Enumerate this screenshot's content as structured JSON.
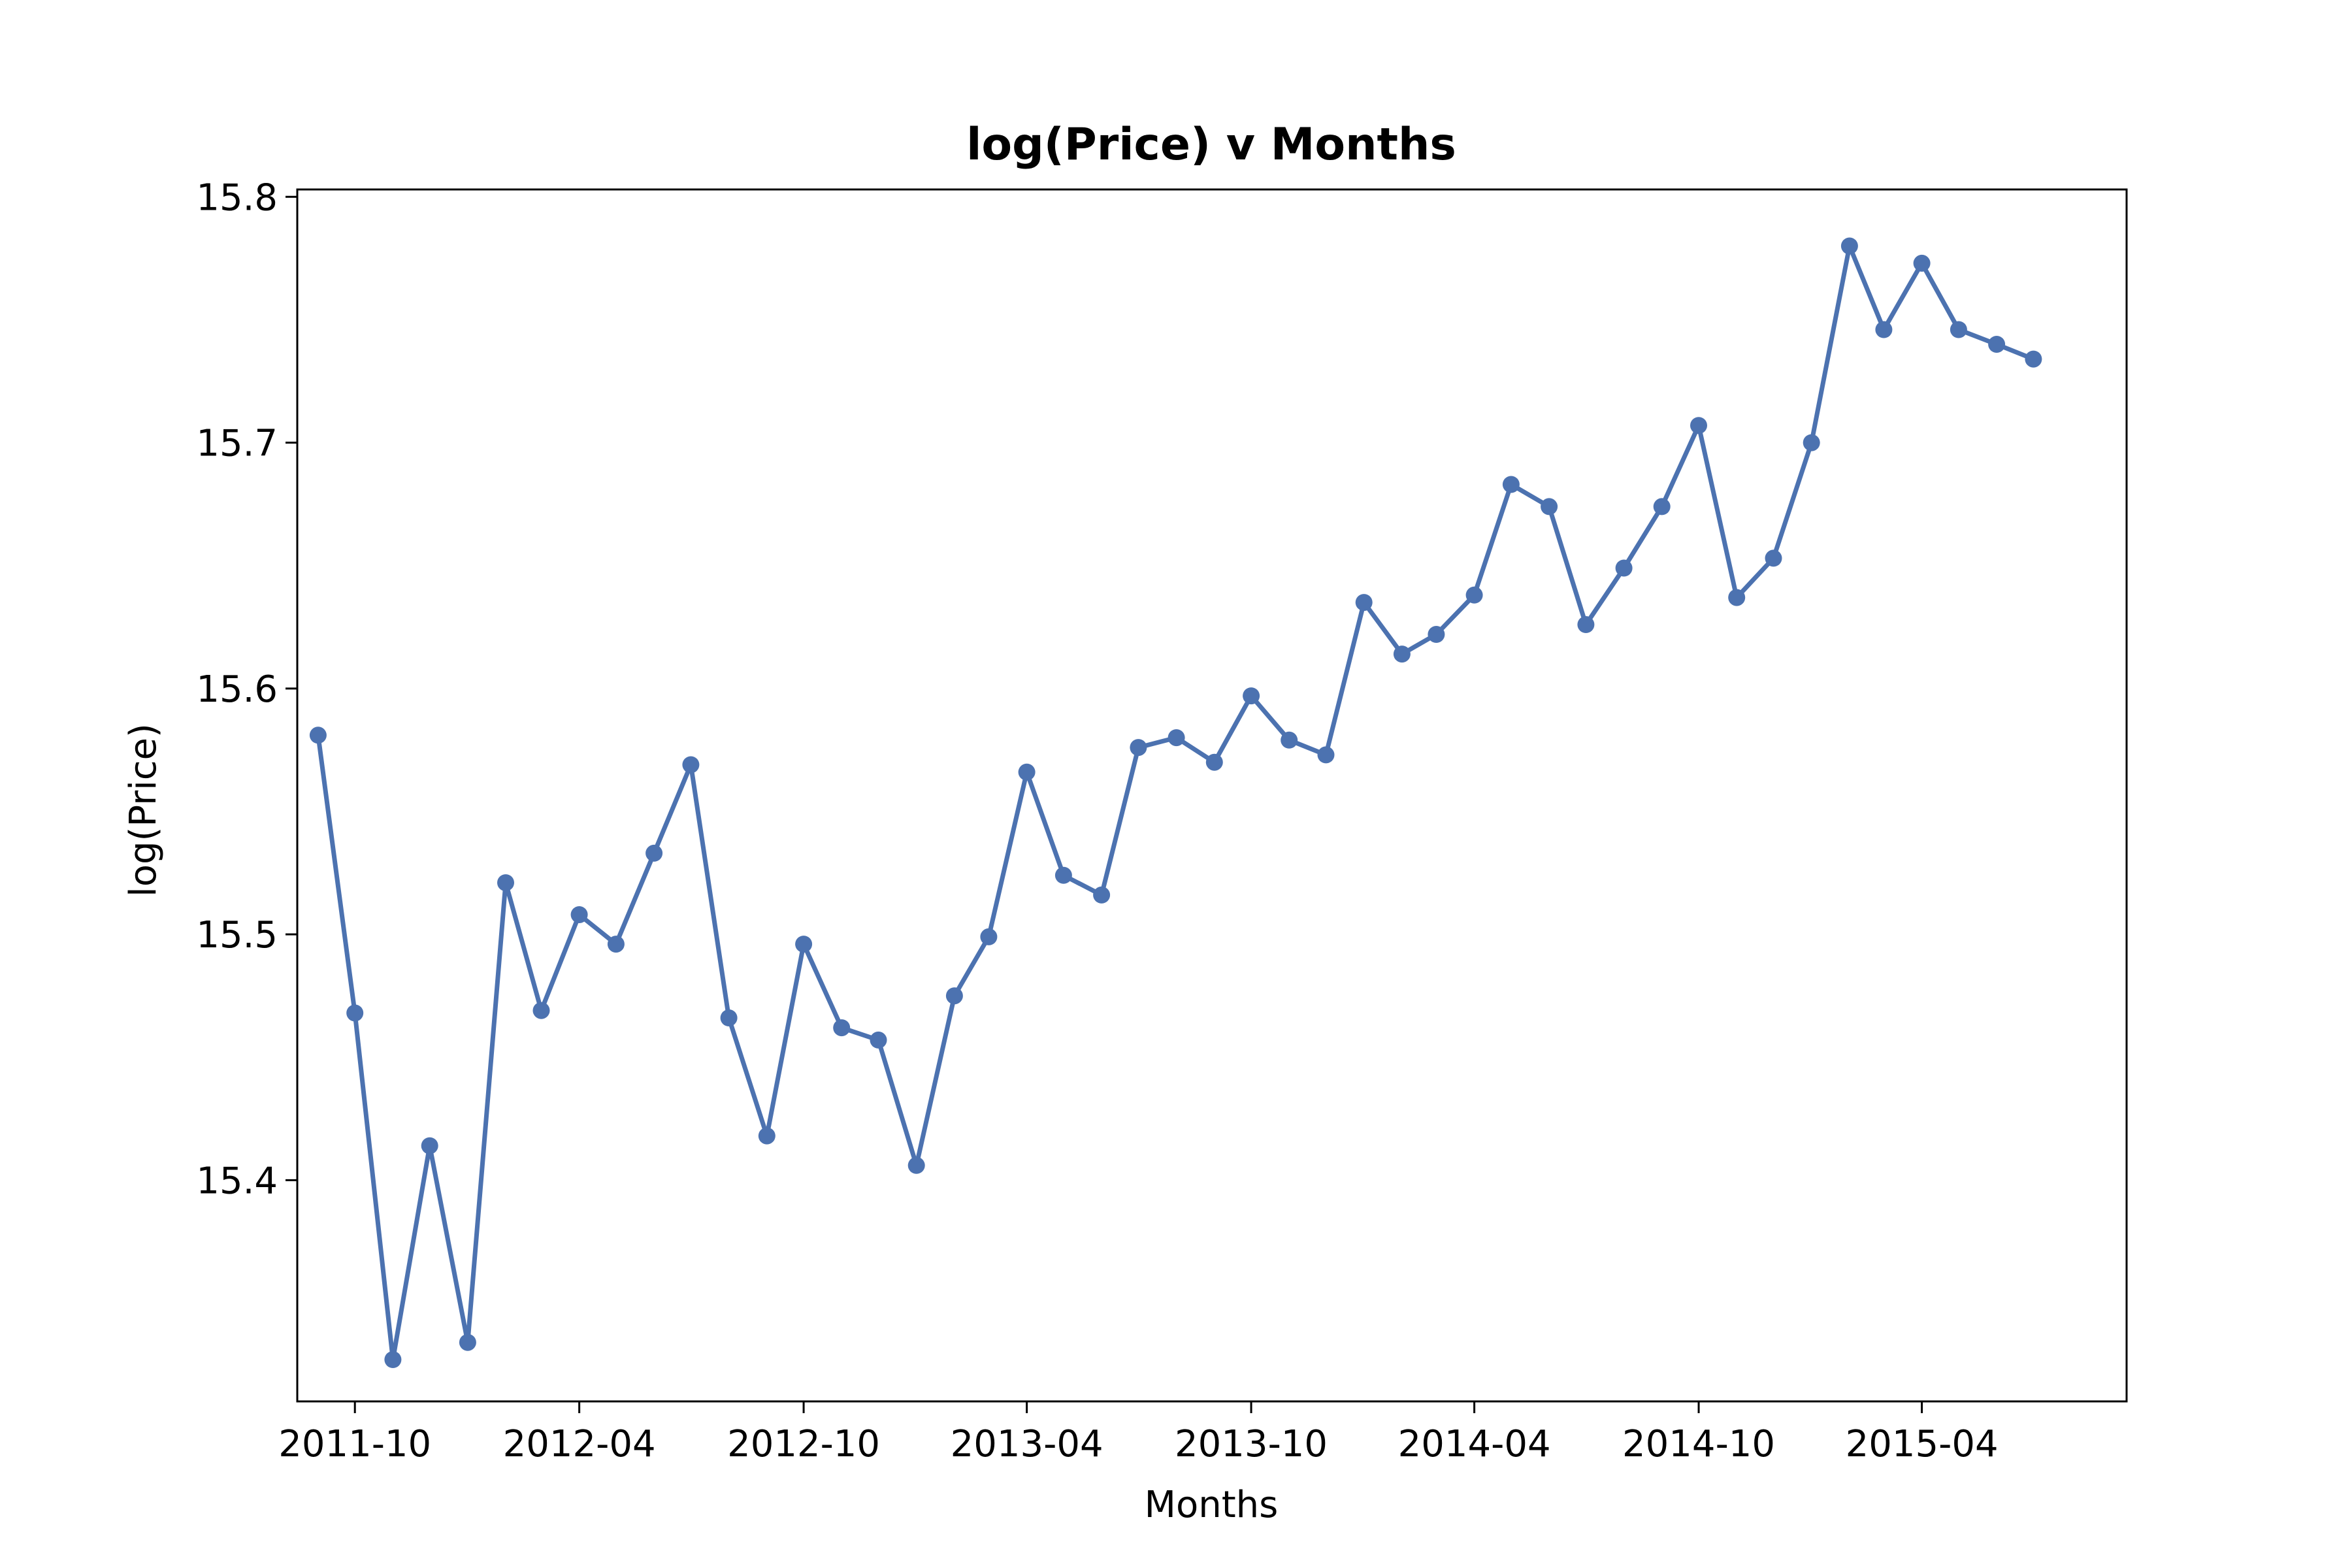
{
  "chart_data": {
    "type": "line",
    "title": "log(Price) v Months",
    "xlabel": "Months",
    "ylabel": "log(Price)",
    "x_tick_labels": [
      "2011-10",
      "2012-04",
      "2012-10",
      "2013-04",
      "2013-10",
      "2014-04",
      "2014-10",
      "2015-04"
    ],
    "y_tick_labels": [
      "15.4",
      "15.5",
      "15.6",
      "15.7",
      "15.8"
    ],
    "xlim": [
      "2011-08-15",
      "2015-09-15"
    ],
    "ylim": [
      15.31,
      15.803
    ],
    "grid": false,
    "line_color": "#4c72b0",
    "series": [
      {
        "x": [
          "2011-09",
          "2011-10",
          "2011-11",
          "2011-12",
          "2012-01",
          "2012-02",
          "2012-03",
          "2012-04",
          "2012-05",
          "2012-06",
          "2012-07",
          "2012-08",
          "2012-09",
          "2012-10",
          "2012-11",
          "2012-12",
          "2013-01",
          "2013-02",
          "2013-03",
          "2013-04",
          "2013-05",
          "2013-06",
          "2013-07",
          "2013-08",
          "2013-09",
          "2013-10",
          "2013-11",
          "2013-12",
          "2014-01",
          "2014-02",
          "2014-03",
          "2014-04",
          "2014-05",
          "2014-06",
          "2014-07",
          "2014-08",
          "2014-09",
          "2014-10",
          "2014-11",
          "2014-12",
          "2015-01",
          "2015-02",
          "2015-03",
          "2015-04",
          "2015-05",
          "2015-06",
          "2015-07"
        ],
        "values": [
          15.581,
          15.468,
          15.327,
          15.414,
          15.334,
          15.521,
          15.469,
          15.508,
          15.496,
          15.533,
          15.569,
          15.466,
          15.418,
          15.496,
          15.462,
          15.457,
          15.406,
          15.475,
          15.499,
          15.566,
          15.524,
          15.516,
          15.576,
          15.58,
          15.57,
          15.597,
          15.579,
          15.573,
          15.635,
          15.614,
          15.622,
          15.638,
          15.683,
          15.674,
          15.626,
          15.649,
          15.674,
          15.707,
          15.637,
          15.653,
          15.7,
          15.78,
          15.746,
          15.773,
          15.746,
          15.74,
          15.734
        ]
      }
    ]
  }
}
